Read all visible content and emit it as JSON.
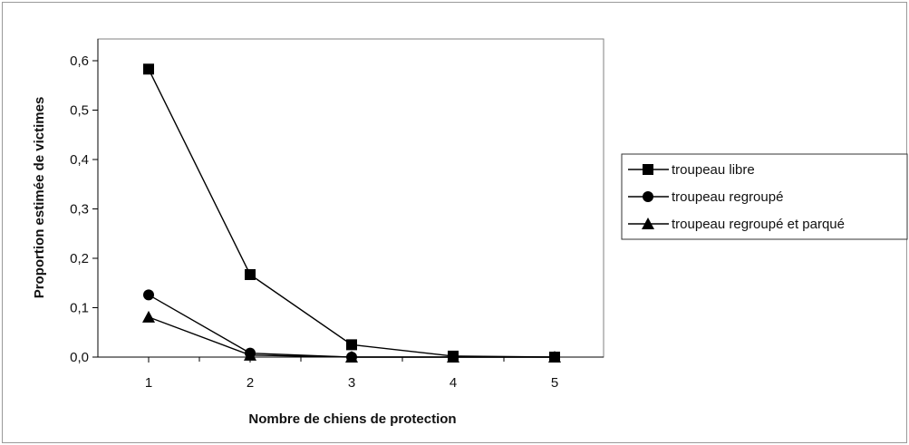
{
  "chart_data": {
    "type": "line",
    "xlabel": "Nombre de chiens de protection",
    "ylabel": "Proportion estimée de victimes",
    "categories": [
      "1",
      "2",
      "3",
      "4",
      "5"
    ],
    "yticks": [
      "0,0",
      "0,1",
      "0,2",
      "0,3",
      "0,4",
      "0,5",
      "0,6"
    ],
    "ylim": [
      0,
      0.6
    ],
    "grid": false,
    "legend_position": "right",
    "series": [
      {
        "name": "troupeau libre",
        "marker": "square",
        "values": [
          0.583,
          0.167,
          0.025,
          0.002,
          0.0
        ]
      },
      {
        "name": "troupeau regroupé",
        "marker": "circle",
        "values": [
          0.126,
          0.008,
          0.0,
          0.0,
          0.0
        ]
      },
      {
        "name": "troupeau regroupé et parqué",
        "marker": "triangle",
        "values": [
          0.081,
          0.004,
          0.0,
          0.0,
          0.0
        ]
      }
    ],
    "colors": {
      "line": "#000000",
      "frame": "#9a9a9a",
      "background": "#ffffff"
    }
  }
}
